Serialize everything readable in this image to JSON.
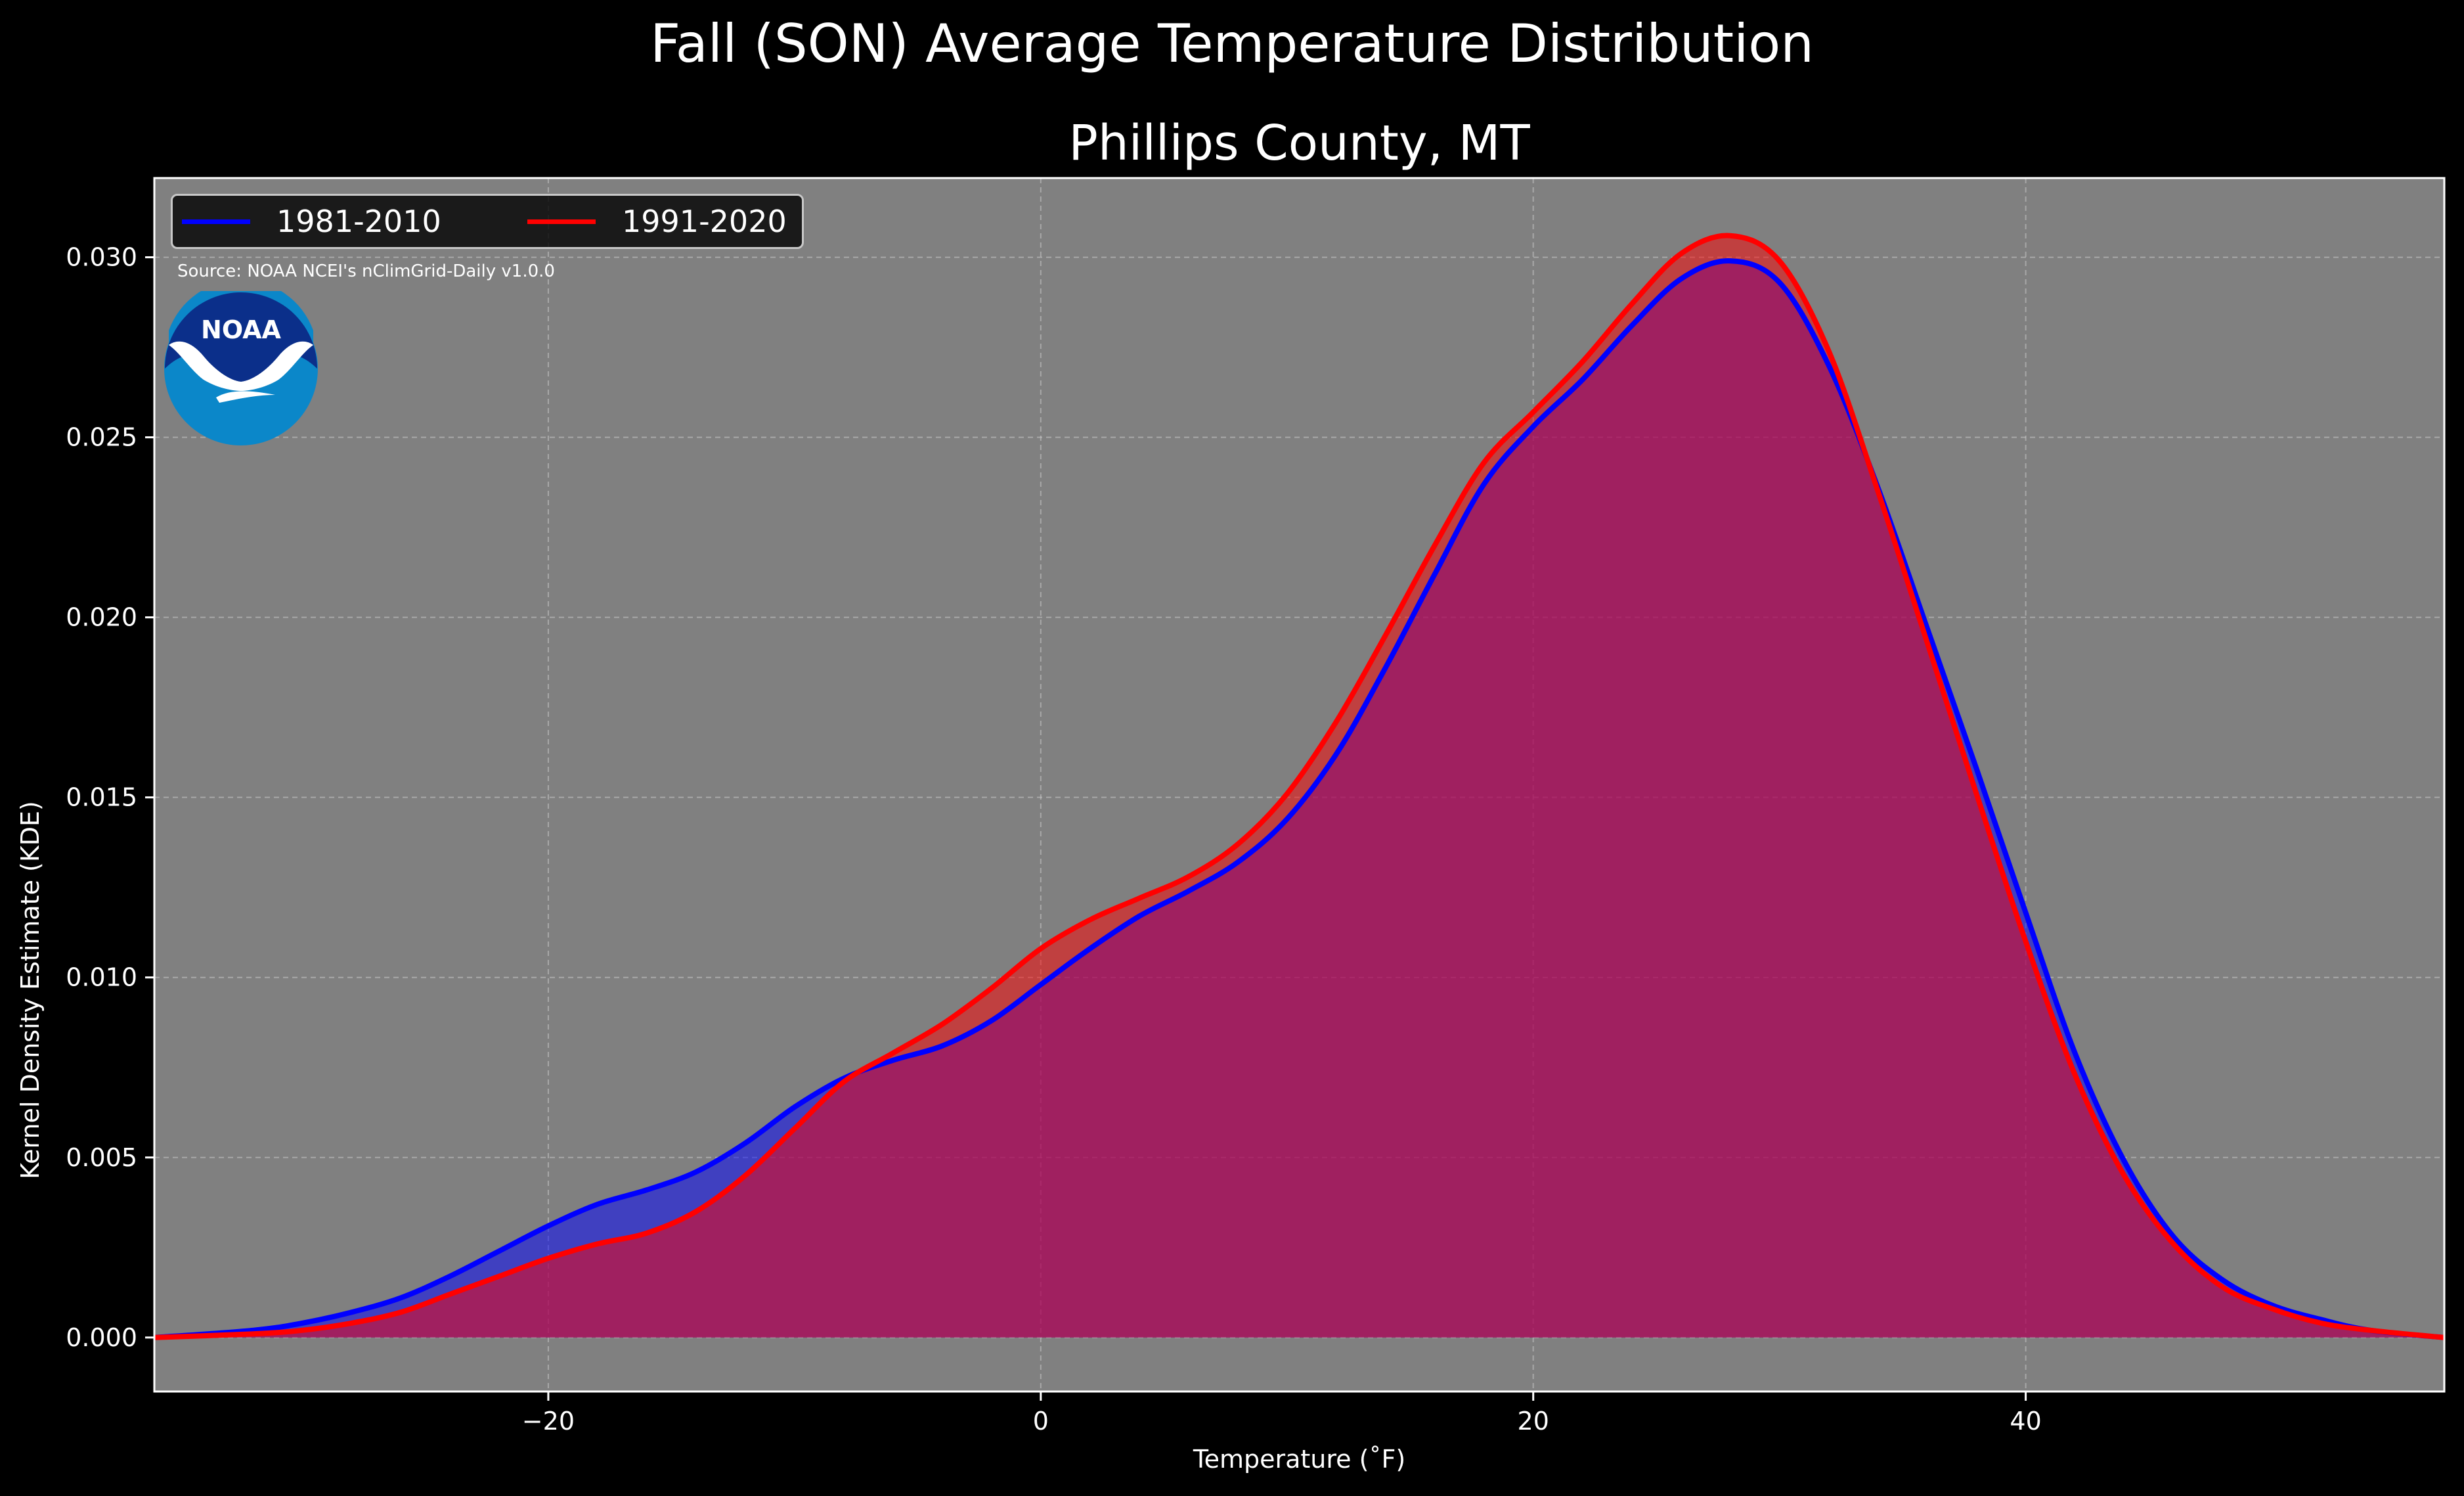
{
  "figure": {
    "suptitle": "Fall (SON) Average Temperature Distribution",
    "source_note": "Source: NOAA NCEI's nClimGrid-Daily v1.0.0",
    "logo": {
      "icon": "noaa-logo-icon",
      "text": "NOAA"
    },
    "background_color": "#000000",
    "plot_background_color": "#808080"
  },
  "chart_data": {
    "type": "area",
    "title": "Phillips County, MT",
    "xlabel": "Temperature ($^\\circ$F)",
    "xlabel_display": "Temperature (˚F)",
    "ylabel": "Kernel Density Estimate (KDE)",
    "xlim": [
      -36,
      57
    ],
    "ylim": [
      -0.0015,
      0.0322
    ],
    "x_ticks": [
      -20,
      0,
      20,
      40
    ],
    "x_tick_labels": [
      "−20",
      "0",
      "20",
      "40"
    ],
    "y_ticks": [
      0.0,
      0.005,
      0.01,
      0.015,
      0.02,
      0.025,
      0.03
    ],
    "y_tick_labels": [
      "0.000",
      "0.005",
      "0.010",
      "0.015",
      "0.020",
      "0.025",
      "0.030"
    ],
    "grid": true,
    "legend_position": "top-left",
    "legend_columns": 2,
    "series": [
      {
        "name": "1981-2010",
        "line_color": "#0000ff",
        "fill_color": "#0000ff",
        "points": [
          [
            -36,
            0.0
          ],
          [
            -32,
            0.0002
          ],
          [
            -30,
            0.0004
          ],
          [
            -28,
            0.0007
          ],
          [
            -26,
            0.0011
          ],
          [
            -24,
            0.0017
          ],
          [
            -22,
            0.0024
          ],
          [
            -20,
            0.0031
          ],
          [
            -18,
            0.0037
          ],
          [
            -16,
            0.0041
          ],
          [
            -14,
            0.0046
          ],
          [
            -12,
            0.0054
          ],
          [
            -10,
            0.0064
          ],
          [
            -8,
            0.0072
          ],
          [
            -6,
            0.0077
          ],
          [
            -4,
            0.0081
          ],
          [
            -2,
            0.0088
          ],
          [
            0,
            0.0098
          ],
          [
            2,
            0.0108
          ],
          [
            4,
            0.0117
          ],
          [
            6,
            0.0124
          ],
          [
            8,
            0.0132
          ],
          [
            10,
            0.0144
          ],
          [
            12,
            0.0162
          ],
          [
            14,
            0.0186
          ],
          [
            16,
            0.0212
          ],
          [
            18,
            0.0237
          ],
          [
            20,
            0.0253
          ],
          [
            22,
            0.0266
          ],
          [
            24,
            0.0281
          ],
          [
            26,
            0.0294
          ],
          [
            28,
            0.0299
          ],
          [
            30,
            0.0293
          ],
          [
            32,
            0.027
          ],
          [
            34,
            0.0236
          ],
          [
            36,
            0.0197
          ],
          [
            38,
            0.0158
          ],
          [
            40,
            0.0118
          ],
          [
            42,
            0.0079
          ],
          [
            44,
            0.0049
          ],
          [
            46,
            0.0028
          ],
          [
            48,
            0.0016
          ],
          [
            50,
            0.0009
          ],
          [
            52,
            0.0005
          ],
          [
            54,
            0.0002
          ],
          [
            57,
            0.0
          ]
        ]
      },
      {
        "name": "1991-2020",
        "line_color": "#ff0000",
        "fill_color": "#ff0000",
        "points": [
          [
            -36,
            0.0
          ],
          [
            -32,
            0.0001
          ],
          [
            -30,
            0.0002
          ],
          [
            -28,
            0.0004
          ],
          [
            -26,
            0.0007
          ],
          [
            -24,
            0.0012
          ],
          [
            -22,
            0.0017
          ],
          [
            -20,
            0.0022
          ],
          [
            -18,
            0.0026
          ],
          [
            -16,
            0.0029
          ],
          [
            -14,
            0.0035
          ],
          [
            -12,
            0.0045
          ],
          [
            -10,
            0.0058
          ],
          [
            -8,
            0.0071
          ],
          [
            -6,
            0.0079
          ],
          [
            -4,
            0.0087
          ],
          [
            -2,
            0.0097
          ],
          [
            0,
            0.0108
          ],
          [
            2,
            0.0116
          ],
          [
            4,
            0.0122
          ],
          [
            6,
            0.0128
          ],
          [
            8,
            0.0137
          ],
          [
            10,
            0.0151
          ],
          [
            12,
            0.0171
          ],
          [
            14,
            0.0195
          ],
          [
            16,
            0.022
          ],
          [
            18,
            0.0243
          ],
          [
            20,
            0.0257
          ],
          [
            22,
            0.0271
          ],
          [
            24,
            0.0287
          ],
          [
            26,
            0.0301
          ],
          [
            28,
            0.0306
          ],
          [
            30,
            0.0299
          ],
          [
            32,
            0.0274
          ],
          [
            34,
            0.0235
          ],
          [
            36,
            0.0193
          ],
          [
            38,
            0.0151
          ],
          [
            40,
            0.011
          ],
          [
            42,
            0.0073
          ],
          [
            44,
            0.0045
          ],
          [
            46,
            0.0026
          ],
          [
            48,
            0.0014
          ],
          [
            50,
            0.0008
          ],
          [
            52,
            0.0004
          ],
          [
            54,
            0.0002
          ],
          [
            57,
            0.0
          ]
        ]
      }
    ]
  }
}
